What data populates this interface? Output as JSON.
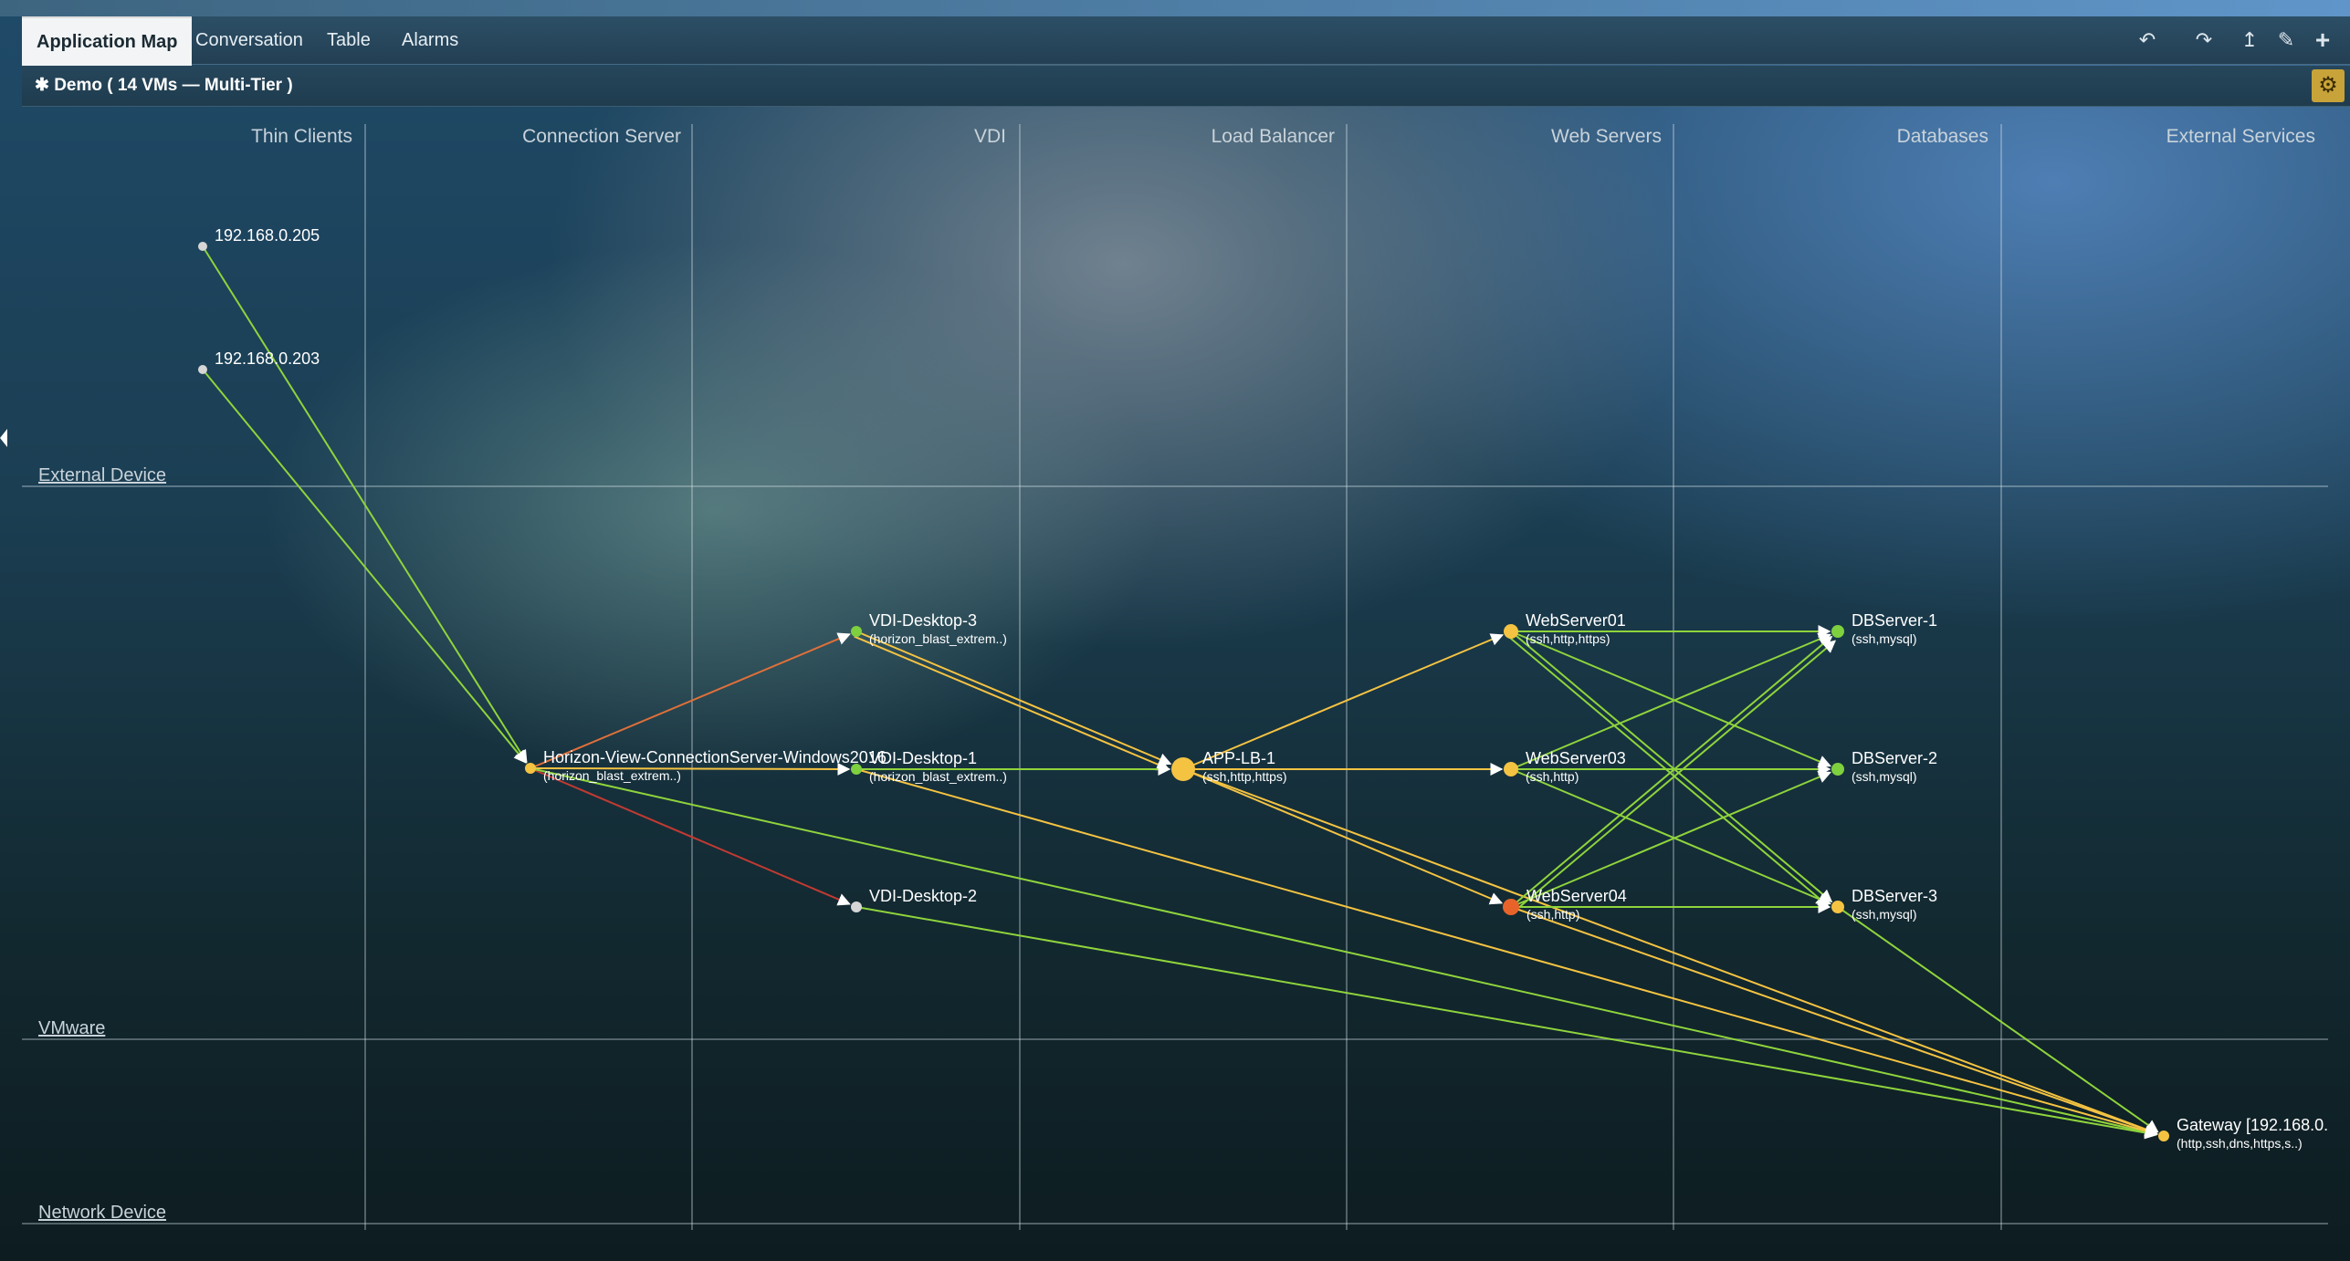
{
  "tabs": [
    {
      "label": "Application Map",
      "active": true
    },
    {
      "label": "Conversation",
      "active": false
    },
    {
      "label": "Table",
      "active": false
    },
    {
      "label": "Alarms",
      "active": false
    }
  ],
  "toolbar_icons": [
    "undo-icon",
    "redo-icon",
    "export-icon",
    "edit-icon",
    "add-icon"
  ],
  "subtitle": "Demo ( 14 VMs — Multi-Tier )",
  "settings_icon": "gear-icon",
  "columns": [
    "Thin Clients",
    "Connection Server",
    "VDI",
    "Load Balancer",
    "Web Servers",
    "Databases",
    "External Services"
  ],
  "rows": [
    "External Device",
    "VMware",
    "Network Device"
  ],
  "nodes": {
    "ip205": {
      "label": "192.168.0.205",
      "sub": "",
      "color": "#d6d6d6"
    },
    "ip203": {
      "label": "192.168.0.203",
      "sub": "",
      "color": "#d6d6d6"
    },
    "horizon": {
      "label": "Horizon-View-ConnectionServer-Windows2016",
      "sub": "(horizon_blast_extrem..)",
      "color": "#f5c342"
    },
    "vdi3": {
      "label": "VDI-Desktop-3",
      "sub": "(horizon_blast_extrem..)",
      "color": "#7ed03e"
    },
    "vdi1": {
      "label": "VDI-Desktop-1",
      "sub": "(horizon_blast_extrem..)",
      "color": "#7ed03e"
    },
    "vdi2": {
      "label": "VDI-Desktop-2",
      "sub": "",
      "color": "#d6d6d6"
    },
    "lb": {
      "label": "APP-LB-1",
      "sub": "(ssh,http,https)",
      "color": "#f5c342"
    },
    "ws01": {
      "label": "WebServer01",
      "sub": "(ssh,http,https)",
      "color": "#f5c342"
    },
    "ws03": {
      "label": "WebServer03",
      "sub": "(ssh,http)",
      "color": "#f5c342"
    },
    "ws04": {
      "label": "WebServer04",
      "sub": "(ssh,http)",
      "color": "#e8632a"
    },
    "db1": {
      "label": "DBServer-1",
      "sub": "(ssh,mysql)",
      "color": "#7ed03e"
    },
    "db2": {
      "label": "DBServer-2",
      "sub": "(ssh,mysql)",
      "color": "#7ed03e"
    },
    "db3": {
      "label": "DBServer-3",
      "sub": "(ssh,mysql)",
      "color": "#f5c342"
    },
    "gw": {
      "label": "Gateway [192.168.0.",
      "sub": "(http,ssh,dns,https,s..)",
      "color": "#f5c342"
    }
  },
  "links": [
    {
      "from": "ip205",
      "to": "horizon",
      "color": "#8fd43c"
    },
    {
      "from": "ip203",
      "to": "horizon",
      "color": "#8fd43c"
    },
    {
      "from": "horizon",
      "to": "vdi3",
      "color": "#e0703a"
    },
    {
      "from": "horizon",
      "to": "vdi1",
      "color": "#f5c342"
    },
    {
      "from": "horizon",
      "to": "vdi2",
      "color": "#c23a32"
    },
    {
      "from": "horizon",
      "to": "gw",
      "color": "#8fd43c"
    },
    {
      "from": "vdi3",
      "to": "lb",
      "color": "#f5c342"
    },
    {
      "from": "vdi3",
      "to": "lb",
      "color": "#f5c342"
    },
    {
      "from": "vdi1",
      "to": "lb",
      "color": "#8fd43c"
    },
    {
      "from": "vdi1",
      "to": "gw",
      "color": "#f5c342"
    },
    {
      "from": "vdi2",
      "to": "gw",
      "color": "#8fd43c"
    },
    {
      "from": "lb",
      "to": "ws01",
      "color": "#f5c342"
    },
    {
      "from": "lb",
      "to": "ws03",
      "color": "#f5c342"
    },
    {
      "from": "lb",
      "to": "ws04",
      "color": "#f5c342"
    },
    {
      "from": "lb",
      "to": "gw",
      "color": "#f5c342"
    },
    {
      "from": "ws01",
      "to": "db1",
      "color": "#8fd43c"
    },
    {
      "from": "ws01",
      "to": "db2",
      "color": "#8fd43c"
    },
    {
      "from": "ws01",
      "to": "db3",
      "color": "#8fd43c"
    },
    {
      "from": "ws01",
      "to": "db3",
      "color": "#8fd43c"
    },
    {
      "from": "ws03",
      "to": "db1",
      "color": "#8fd43c"
    },
    {
      "from": "ws03",
      "to": "db2",
      "color": "#8fd43c"
    },
    {
      "from": "ws03",
      "to": "db3",
      "color": "#8fd43c"
    },
    {
      "from": "ws04",
      "to": "db1",
      "color": "#8fd43c"
    },
    {
      "from": "ws04",
      "to": "db1",
      "color": "#8fd43c"
    },
    {
      "from": "ws04",
      "to": "db2",
      "color": "#8fd43c"
    },
    {
      "from": "ws04",
      "to": "db3",
      "color": "#8fd43c"
    },
    {
      "from": "ws04",
      "to": "gw",
      "color": "#f5c342"
    },
    {
      "from": "db3",
      "to": "gw",
      "color": "#8fd43c"
    }
  ]
}
